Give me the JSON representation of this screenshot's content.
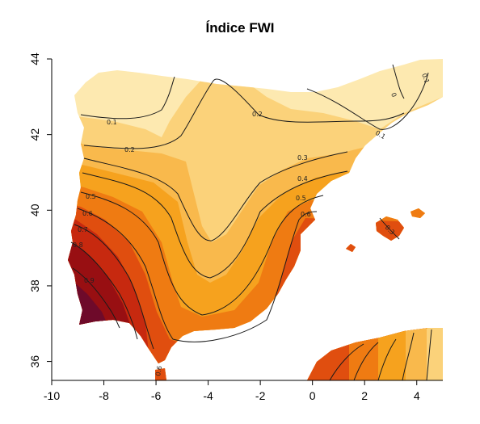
{
  "title": "Índice FWI",
  "x_ticks": [
    "-10",
    "-8",
    "-6",
    "-4",
    "-2",
    "0",
    "2",
    "4"
  ],
  "y_ticks": [
    "36",
    "38",
    "40",
    "42",
    "44"
  ],
  "colors": {
    "lowest": "#fde9b0",
    "low": "#fbd27a",
    "mid_low": "#f9b94c",
    "mid": "#f6a21e",
    "mid_high": "#ef7b12",
    "high": "#e04e0f",
    "higher": "#c7290f",
    "highest": "#980f12",
    "max": "#6e0a2a"
  },
  "contour_labels": [
    "0",
    "0.1",
    "0.2",
    "0.3",
    "0.4",
    "0.5",
    "0.6",
    "0.7",
    "0.8",
    "0.9"
  ],
  "chart_data": {
    "type": "heatmap",
    "title": "Índice FWI",
    "xlim": [
      -10,
      5
    ],
    "ylim": [
      35.5,
      44
    ],
    "x_ticks": [
      -10,
      -8,
      -6,
      -4,
      -2,
      0,
      2,
      4
    ],
    "y_ticks": [
      36,
      38,
      40,
      42,
      44
    ],
    "contour_levels": [
      0,
      0.1,
      0.2,
      0.3,
      0.4,
      0.5,
      0.6,
      0.7,
      0.8,
      0.9
    ],
    "legend": "none"
  }
}
